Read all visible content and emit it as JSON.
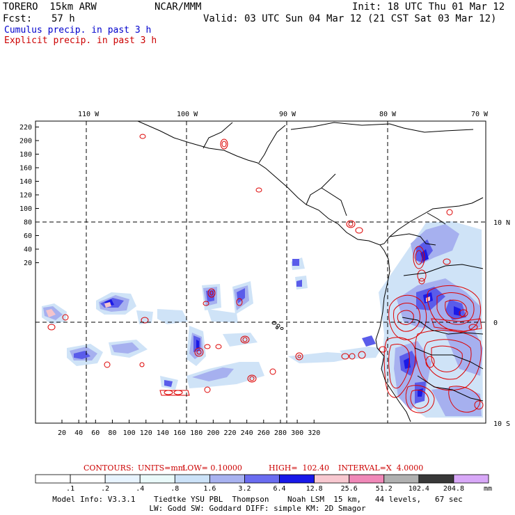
{
  "header": {
    "model": "TORERO  15km ARW",
    "org": "NCAR/MMM",
    "init": "Init: 18 UTC Thu 01 Mar 12",
    "fcst_label": "Fcst:",
    "fcst_value": "57 h",
    "valid": "Valid: 03 UTC Sun 04 Mar 12 (21 CST Sat 03 Mar 12)",
    "line_cumulus": "Cumulus precip. in past 3 h",
    "line_explicit": "Explicit precip. in past 3 h"
  },
  "colors": {
    "cumulus_text": "#0000cc",
    "explicit_text": "#cc0000",
    "contour": "#dd0000"
  },
  "map": {
    "lon_labels": [
      "110 W",
      "100 W",
      "90 W",
      "80 W",
      "70 W"
    ],
    "lat_labels": [
      "10 N",
      "0",
      "10 S"
    ],
    "y_ticks": [
      "220",
      "200",
      "180",
      "160",
      "140",
      "120",
      "100",
      "80",
      "60",
      "40",
      "20"
    ],
    "x_ticks": [
      "20",
      "40",
      "60",
      "80",
      "100",
      "120",
      "140",
      "160",
      "180",
      "200",
      "220",
      "240",
      "260",
      "280",
      "300",
      "320"
    ]
  },
  "contours": {
    "label": "CONTOURS:",
    "units": "UNITS=mm",
    "low": "LOW= 0.10000",
    "high": "HIGH=  102.40",
    "interval": "INTERVAL=X  4.0000"
  },
  "colorbar": {
    "unit": "mm",
    "labels": [
      ".1",
      ".2",
      ".4",
      ".8",
      "1.6",
      "3.2",
      "6.4",
      "12.8",
      "25.6",
      "51.2",
      "102.4",
      "204.8"
    ],
    "colors": [
      "#ffffff",
      "#ffffff",
      "#e8f4ff",
      "#eafafa",
      "#cce2f8",
      "#a8b2f0",
      "#6a6cf0",
      "#1818e8",
      "#f8c8d0",
      "#f088b8",
      "#b0b0b0",
      "#383838",
      "#d8a8f8"
    ]
  },
  "footer": {
    "line1": "Model Info: V3.3.1    Tiedtke YSU PBL  Thompson    Noah LSM  15 km,   44 levels,   67 sec",
    "line2": "LW: Godd SW: Goddard DIFF: simple KM: 2D Smagor"
  }
}
